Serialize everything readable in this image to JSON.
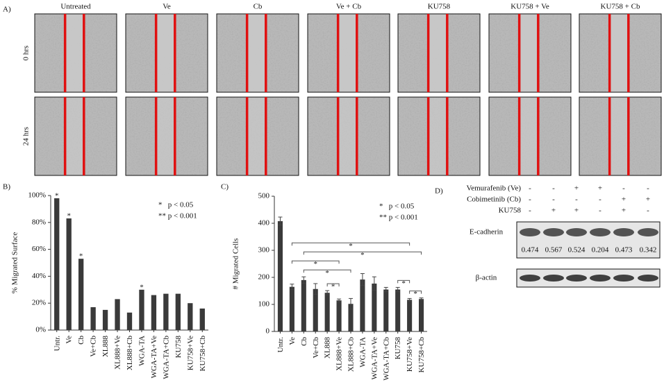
{
  "panel_a": {
    "label": "A)",
    "columns": [
      "Untreated",
      "Ve",
      "Cb",
      "Ve + Cb",
      "KU758",
      "KU758 + Ve",
      "KU758 + Cb"
    ],
    "rows": [
      "0 hrs",
      "24 hrs"
    ]
  },
  "chart_data": [
    {
      "type": "bar",
      "label": "B)",
      "ylabel": "% Migrated Surface",
      "categories": [
        "Untr.",
        "Ve",
        "Cb",
        "Ve+Cb",
        "XL888",
        "XL888+Ve",
        "XL888+Cb",
        "WGA-TA",
        "WGA-TA+Ve",
        "WGA-TA+Cb",
        "KU758",
        "KU758+Ve",
        "KU758+Cb"
      ],
      "values": [
        98,
        83,
        53,
        17,
        15,
        23,
        13,
        30,
        26,
        27,
        27,
        20,
        16
      ],
      "significance": [
        "*",
        "*",
        "*",
        null,
        null,
        null,
        null,
        "*",
        null,
        null,
        null,
        null,
        null
      ],
      "color": "#3a3a3a",
      "notes": [
        "*   p < 0.05",
        "** p < 0.001"
      ],
      "ylim": [
        0,
        100
      ],
      "yticks": [
        {
          "value": 0,
          "label": "0%"
        },
        {
          "value": 20,
          "label": "20%"
        },
        {
          "value": 40,
          "label": "40%"
        },
        {
          "value": 60,
          "label": "60%"
        },
        {
          "value": 80,
          "label": "80%"
        },
        {
          "value": 100,
          "label": "100%"
        }
      ]
    },
    {
      "type": "bar",
      "label": "C)",
      "ylabel": "# Migrated Cells",
      "categories": [
        "Untr.",
        "Ve",
        "Cb",
        "Ve+Cb",
        "XL888",
        "XL888+Ve",
        "XL888+Cb",
        "WGA-TA",
        "WGA-TA+Ve",
        "WGA-TA+Cb",
        "KU758",
        "KU758+Ve",
        "KU758+Cb"
      ],
      "values": [
        408,
        165,
        190,
        157,
        143,
        115,
        102,
        192,
        177,
        155,
        155,
        117,
        120
      ],
      "errors": [
        15,
        10,
        12,
        20,
        8,
        5,
        20,
        22,
        25,
        8,
        8,
        5,
        4
      ],
      "color": "#3a3a3a",
      "notes": [
        "*   p < 0.05",
        "** p < 0.001"
      ],
      "brackets": [
        {
          "from": "Cb",
          "to": "KU758+Cb",
          "label": "*"
        },
        {
          "from": "Cb",
          "to": "XL888+Cb",
          "label": "*"
        },
        {
          "from": "Ve",
          "to": "KU758+Ve",
          "label": "*"
        },
        {
          "from": "Ve",
          "to": "XL888+Ve",
          "label": "*"
        },
        {
          "from": "XL888",
          "to": "XL888+Ve",
          "label": "*"
        },
        {
          "from": "KU758+Ve",
          "to": "KU758+Cb",
          "label": "*"
        },
        {
          "from": "KU758",
          "to": "KU758+Ve",
          "label": "*"
        }
      ],
      "ylim": [
        0,
        500
      ],
      "yticks": [
        0,
        100,
        200,
        300,
        400,
        500
      ]
    }
  ],
  "panel_d": {
    "label": "D)",
    "treatments": [
      {
        "name": "Vemurafenib (Ve)",
        "signs": [
          "-",
          "-",
          "+",
          "+",
          "-",
          "-"
        ]
      },
      {
        "name": "Cobimetinib (Cb)",
        "signs": [
          "-",
          "-",
          "-",
          "-",
          "+",
          "+"
        ]
      },
      {
        "name": "KU758",
        "signs": [
          "-",
          "+",
          "+",
          "-",
          "+",
          "-"
        ]
      }
    ],
    "blots": [
      {
        "name": "E-cadherin",
        "quantification": [
          0.474,
          0.567,
          0.524,
          0.204,
          0.473,
          0.342
        ]
      },
      {
        "name": "β-actin"
      }
    ]
  }
}
